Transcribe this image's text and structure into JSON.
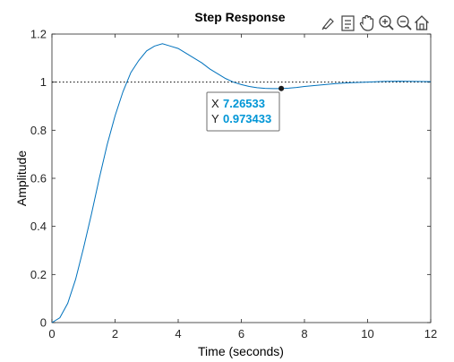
{
  "colors": {
    "line": "#0072bd",
    "datatip_value": "#0096d6",
    "axes": "#262626",
    "reference_line": "#000000"
  },
  "toolbar": {
    "icons": [
      "brush-icon",
      "datatip-icon",
      "pan-hand-icon",
      "zoom-in-icon",
      "zoom-out-icon",
      "home-icon"
    ]
  },
  "datatip": {
    "x_key": "X",
    "x_value": "7.26533",
    "y_key": "Y",
    "y_value": "0.973433"
  },
  "chart_data": {
    "type": "line",
    "title": "Step Response",
    "xlabel": "Time (seconds)",
    "ylabel": "Amplitude",
    "xlim": [
      0,
      12
    ],
    "ylim": [
      0,
      1.2
    ],
    "xticks": [
      0,
      2,
      4,
      6,
      8,
      10,
      12
    ],
    "xtick_labels": [
      "0",
      "2",
      "4",
      "6",
      "8",
      "10",
      "12"
    ],
    "yticks": [
      0,
      0.2,
      0.4,
      0.6,
      0.8,
      1,
      1.2
    ],
    "ytick_labels": [
      "0",
      "0.2",
      "0.4",
      "0.6",
      "0.8",
      "1",
      "1.2"
    ],
    "reference_value": 1,
    "grid": false,
    "series": [
      {
        "x": [
          0,
          0.25,
          0.5,
          0.75,
          1.0,
          1.25,
          1.5,
          1.75,
          2.0,
          2.25,
          2.5,
          2.75,
          3.0,
          3.25,
          3.5,
          3.75,
          4.0,
          4.25,
          4.5,
          4.75,
          5.0,
          5.25,
          5.5,
          5.75,
          6.0,
          6.25,
          6.5,
          6.75,
          7.0,
          7.25,
          7.5,
          7.75,
          8.0,
          8.5,
          9.0,
          9.5,
          10.0,
          10.5,
          11.0,
          11.5,
          12.0
        ],
        "y": [
          0,
          0.02,
          0.08,
          0.18,
          0.31,
          0.45,
          0.6,
          0.74,
          0.86,
          0.96,
          1.04,
          1.09,
          1.13,
          1.15,
          1.16,
          1.15,
          1.14,
          1.12,
          1.1,
          1.08,
          1.055,
          1.035,
          1.015,
          1.0,
          0.99,
          0.982,
          0.977,
          0.974,
          0.973,
          0.973,
          0.975,
          0.978,
          0.982,
          0.988,
          0.994,
          0.998,
          1.0,
          1.003,
          1.004,
          1.003,
          1.002
        ]
      }
    ],
    "datatip_point": {
      "x": 7.26533,
      "y": 0.973433
    }
  }
}
